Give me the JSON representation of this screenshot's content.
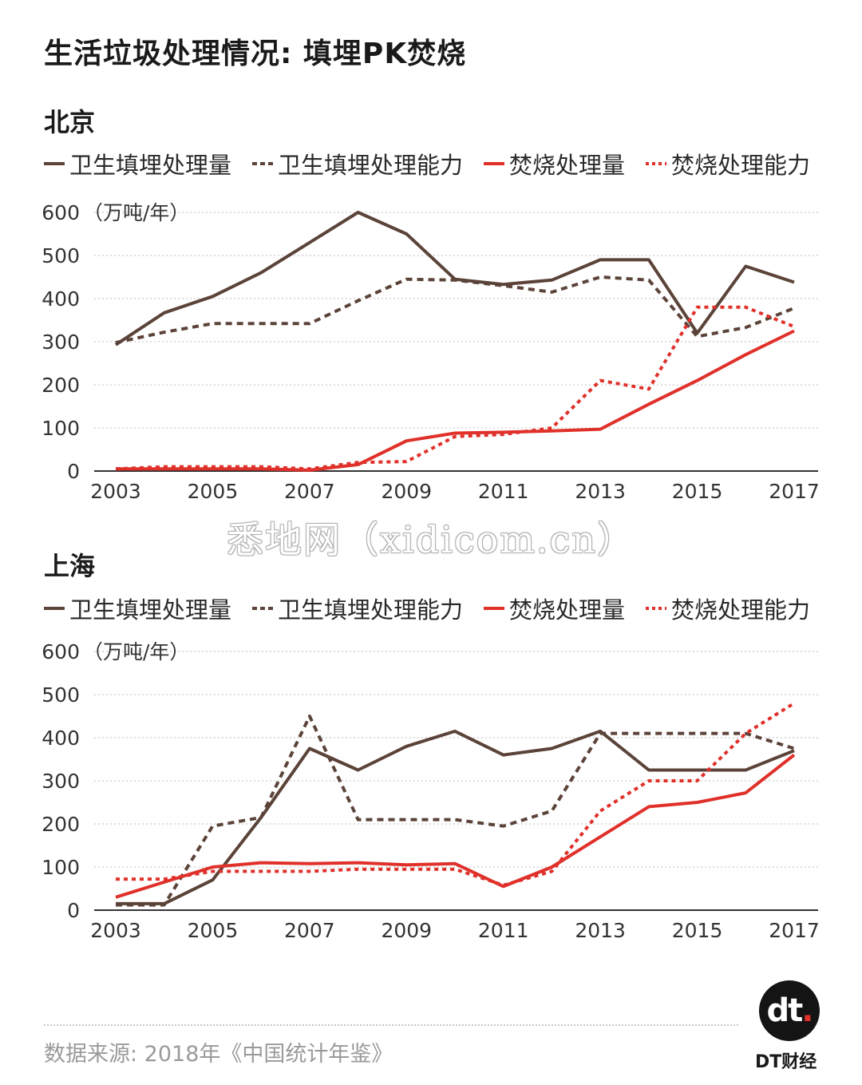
{
  "title": "生活垃圾处理情况: 填埋PK焚烧",
  "legend": [
    {
      "label": "卫生填埋处理量",
      "color": "#5b4339",
      "dashed": false
    },
    {
      "label": "卫生填埋处理能力",
      "color": "#5b4339",
      "dashed": true
    },
    {
      "label": "焚烧处理量",
      "color": "#e0302a",
      "dashed": false
    },
    {
      "label": "焚烧处理能力",
      "color": "#e0302a",
      "dashed": true
    }
  ],
  "chart_data": [
    {
      "type": "line",
      "title": "北京",
      "ylabel": "（万吨/年）",
      "ylim": [
        0,
        600
      ],
      "yticks": [
        0,
        100,
        200,
        300,
        400,
        500,
        600
      ],
      "xticks": [
        2003,
        2005,
        2007,
        2009,
        2011,
        2013,
        2015,
        2017
      ],
      "grid": true,
      "x": [
        2003,
        2004,
        2005,
        2006,
        2007,
        2008,
        2009,
        2010,
        2011,
        2012,
        2013,
        2014,
        2015,
        2016,
        2017
      ],
      "series": [
        {
          "name": "卫生填埋处理量",
          "color": "#5b4339",
          "dashed": false,
          "values": [
            293,
            367,
            405,
            460,
            530,
            600,
            550,
            445,
            433,
            443,
            490,
            490,
            320,
            475,
            438
          ]
        },
        {
          "name": "卫生填埋处理能力",
          "color": "#5b4339",
          "dashed": true,
          "values": [
            298,
            322,
            342,
            342,
            342,
            395,
            445,
            443,
            430,
            415,
            450,
            443,
            312,
            333,
            378
          ]
        },
        {
          "name": "焚烧处理量",
          "color": "#e0302a",
          "dashed": false,
          "values": [
            5,
            5,
            5,
            5,
            2,
            15,
            70,
            88,
            90,
            93,
            97,
            155,
            210,
            270,
            325
          ]
        },
        {
          "name": "焚烧处理能力",
          "color": "#e0302a",
          "dashed": true,
          "values": [
            5,
            10,
            10,
            10,
            5,
            20,
            22,
            80,
            85,
            100,
            210,
            190,
            380,
            380,
            335
          ]
        }
      ]
    },
    {
      "type": "line",
      "title": "上海",
      "ylabel": "（万吨/年）",
      "ylim": [
        0,
        600
      ],
      "yticks": [
        0,
        100,
        200,
        300,
        400,
        500,
        600
      ],
      "xticks": [
        2003,
        2005,
        2007,
        2009,
        2011,
        2013,
        2015,
        2017
      ],
      "grid": true,
      "x": [
        2003,
        2004,
        2005,
        2006,
        2007,
        2008,
        2009,
        2010,
        2011,
        2012,
        2013,
        2014,
        2015,
        2016,
        2017
      ],
      "series": [
        {
          "name": "卫生填埋处理量",
          "color": "#5b4339",
          "dashed": false,
          "values": [
            15,
            15,
            70,
            215,
            375,
            325,
            380,
            415,
            360,
            375,
            415,
            325,
            325,
            325,
            370
          ]
        },
        {
          "name": "卫生填埋处理能力",
          "color": "#5b4339",
          "dashed": true,
          "values": [
            12,
            12,
            195,
            215,
            450,
            210,
            210,
            210,
            195,
            230,
            410,
            410,
            410,
            410,
            375
          ]
        },
        {
          "name": "焚烧处理量",
          "color": "#e0302a",
          "dashed": false,
          "values": [
            30,
            65,
            100,
            110,
            108,
            110,
            105,
            108,
            55,
            100,
            170,
            240,
            250,
            272,
            360
          ]
        },
        {
          "name": "焚烧处理能力",
          "color": "#e0302a",
          "dashed": true,
          "values": [
            72,
            72,
            90,
            90,
            90,
            95,
            95,
            95,
            58,
            90,
            230,
            300,
            300,
            410,
            480
          ]
        }
      ]
    }
  ],
  "watermark": "悉地网（xidicom.cn）",
  "source": "数据来源: 2018年《中国统计年鉴》",
  "brand": {
    "logo": "dt",
    "name": "DT财经"
  }
}
